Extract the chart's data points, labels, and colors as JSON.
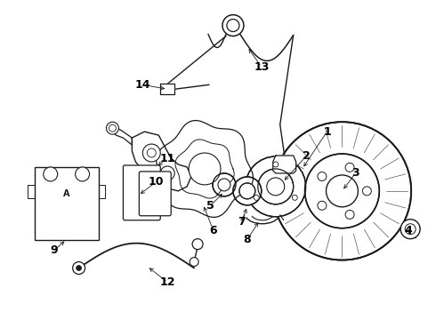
{
  "bg_color": "#ffffff",
  "line_color": "#1a1a1a",
  "label_color": "#000000",
  "fig_width": 4.9,
  "fig_height": 3.6,
  "dpi": 100,
  "font_size_labels": 9,
  "font_weight": "bold"
}
